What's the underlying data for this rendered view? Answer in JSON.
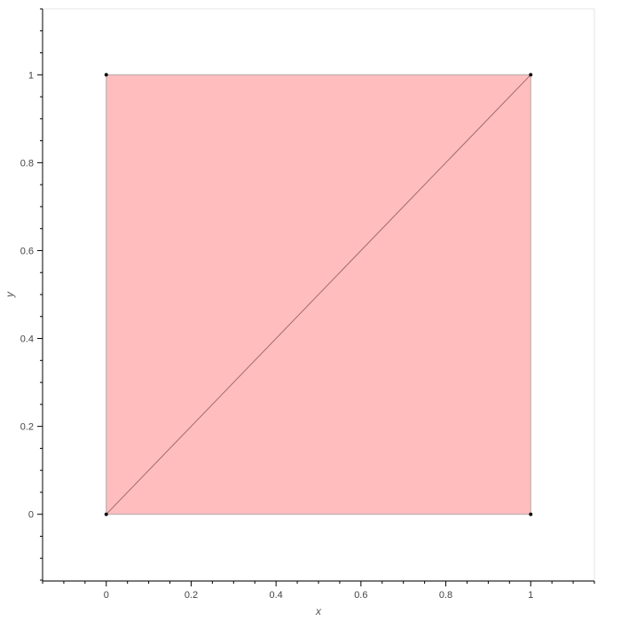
{
  "chart_data": {
    "type": "area",
    "title": "",
    "xlabel": "x",
    "ylabel": "y",
    "xlim": [
      -0.15,
      1.15
    ],
    "ylim": [
      -0.15,
      1.15
    ],
    "grid": false,
    "x_ticks": [
      {
        "value": 0,
        "label": "0"
      },
      {
        "value": 0.2,
        "label": "0.2"
      },
      {
        "value": 0.4,
        "label": "0.4"
      },
      {
        "value": 0.6,
        "label": "0.6"
      },
      {
        "value": 0.8,
        "label": "0.8"
      },
      {
        "value": 1,
        "label": "1"
      }
    ],
    "y_ticks": [
      {
        "value": 0,
        "label": "0"
      },
      {
        "value": 0.2,
        "label": "0.2"
      },
      {
        "value": 0.4,
        "label": "0.4"
      },
      {
        "value": 0.6,
        "label": "0.6"
      },
      {
        "value": 0.8,
        "label": "0.8"
      },
      {
        "value": 1,
        "label": "1"
      }
    ],
    "minor_tick_step": 0.05,
    "filled_region": {
      "polygon": [
        [
          0,
          0
        ],
        [
          1,
          0
        ],
        [
          1,
          1
        ],
        [
          0,
          1
        ]
      ],
      "fill_color": "#ffbdbe",
      "edge_color": "#b0a8a8"
    },
    "line": {
      "points": [
        [
          0,
          0
        ],
        [
          1,
          1
        ]
      ],
      "color": "#a06a6c"
    },
    "points": {
      "values": [
        [
          0,
          0
        ],
        [
          1,
          0
        ],
        [
          1,
          1
        ],
        [
          0,
          1
        ]
      ],
      "color": "#111111"
    }
  }
}
